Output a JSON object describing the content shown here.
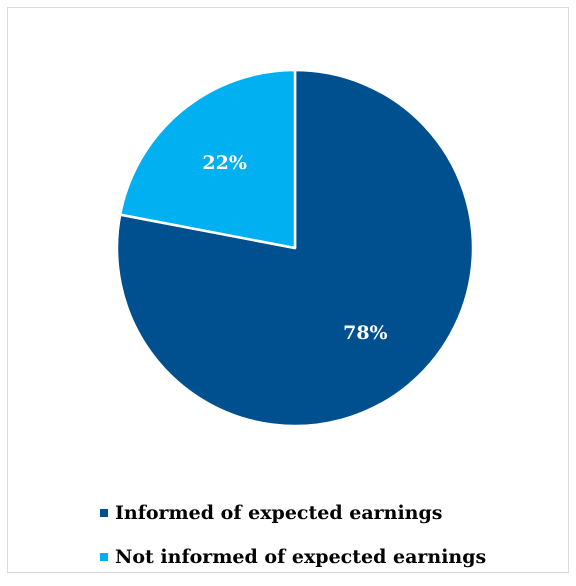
{
  "chart_data": {
    "type": "pie",
    "slices": [
      {
        "label": "Informed of expected earnings",
        "value": 78,
        "value_label": "78%",
        "color": "#00508f"
      },
      {
        "label": "Not informed of expected earnings",
        "value": 22,
        "value_label": "22%",
        "color": "#00b0f0"
      }
    ],
    "legend_position": "bottom",
    "start_angle": "12 o'clock",
    "direction": "clockwise"
  }
}
